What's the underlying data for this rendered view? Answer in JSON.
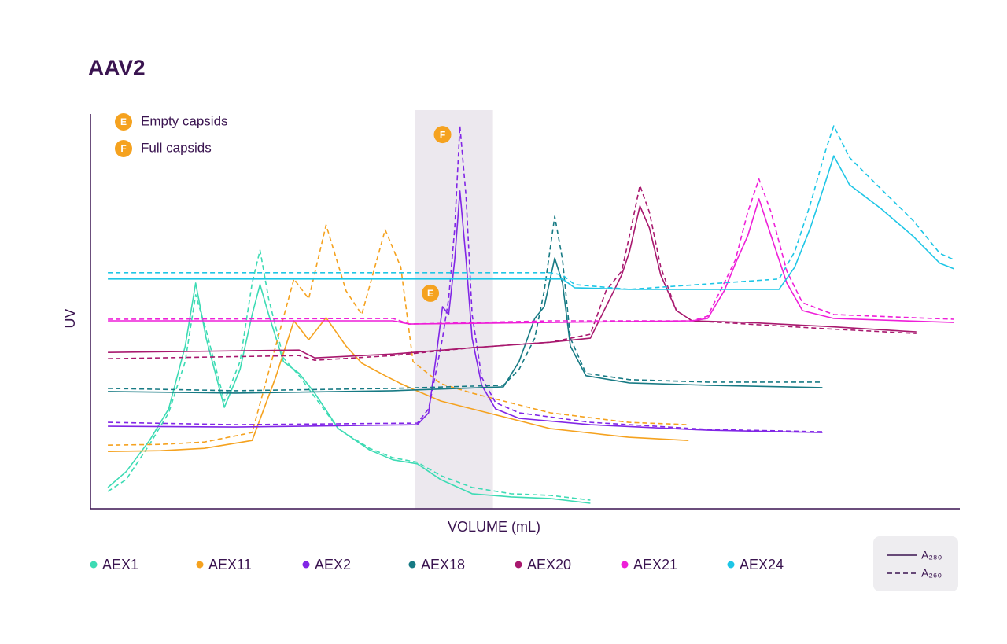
{
  "chart_data": {
    "type": "line",
    "title": "AAV2",
    "x_label": "VOLUME (mL)",
    "y_label": "UV",
    "xlim": [
      0,
      100
    ],
    "ylim": [
      0,
      100
    ],
    "shaded_range": [
      37.3,
      46.3
    ],
    "line_styles": [
      {
        "key": "a280",
        "label": "A₂₈₀",
        "dash": "solid"
      },
      {
        "key": "a260",
        "label": "A₂₆₀",
        "dash": "dashed"
      }
    ],
    "markers": [
      {
        "label": "E",
        "text": "Empty capsids"
      },
      {
        "label": "F",
        "text": "Full capsids"
      }
    ],
    "annotations": [
      {
        "label": "E",
        "x": 39.1,
        "y": 54.6
      },
      {
        "label": "F",
        "x": 40.5,
        "y": 94.8
      }
    ],
    "series": [
      {
        "name": "AEX1",
        "color": "#3ddbb4",
        "x": [
          2.0,
          4.1,
          6.8,
          9.0,
          10.9,
          12.1,
          13.3,
          15.4,
          17.2,
          18.6,
          19.5,
          20.5,
          22.2,
          24.0,
          25.8,
          28.5,
          32.1,
          34.8,
          37.6,
          40.3,
          43.9,
          48.4,
          52.9,
          57.5
        ],
        "a280": [
          5.4,
          9.4,
          17.3,
          25.3,
          41.2,
          57.2,
          43.2,
          25.7,
          35.3,
          49.2,
          56.8,
          49.2,
          37.3,
          34.3,
          29.3,
          20.3,
          14.9,
          12.4,
          11.4,
          7.4,
          3.8,
          3.0,
          2.6,
          1.4
        ],
        "a260": [
          4.4,
          7.4,
          16.3,
          24.3,
          37.3,
          54.2,
          45.2,
          27.3,
          37.3,
          57.2,
          65.5,
          53.2,
          38.2,
          33.7,
          28.3,
          20.3,
          15.3,
          12.9,
          11.8,
          8.4,
          5.4,
          3.8,
          3.4,
          2.2
        ]
      },
      {
        "name": "AEX11",
        "color": "#f5a21f",
        "x": [
          2.0,
          8.1,
          13.1,
          18.6,
          21.3,
          23.4,
          25.1,
          27.1,
          29.4,
          31.2,
          33.9,
          35.7,
          37.1,
          40.3,
          43.9,
          52.9,
          61.9,
          68.8
        ],
        "a280": [
          14.5,
          14.7,
          15.3,
          17.3,
          33.3,
          47.6,
          42.8,
          48.4,
          41.2,
          36.9,
          33.7,
          31.7,
          30.3,
          27.3,
          25.3,
          20.3,
          18.1,
          17.3
        ],
        "a260": [
          16.1,
          16.3,
          16.9,
          19.3,
          41.2,
          58.2,
          53.2,
          71.9,
          55.2,
          49.2,
          70.7,
          61.2,
          37.3,
          31.7,
          29.3,
          24.3,
          21.9,
          21.3
        ]
      },
      {
        "name": "AEX2",
        "color": "#8126e6",
        "x": [
          2.0,
          16.7,
          37.6,
          38.9,
          39.8,
          40.5,
          41.2,
          41.9,
          42.5,
          43.2,
          43.9,
          45.0,
          46.6,
          49.3,
          57.5,
          71.0,
          84.2
        ],
        "a280": [
          20.9,
          20.7,
          21.3,
          24.3,
          39.2,
          51.2,
          49.2,
          63.1,
          80.5,
          63.1,
          43.2,
          31.3,
          25.3,
          22.9,
          21.3,
          19.9,
          19.3
        ],
        "a260": [
          21.9,
          21.3,
          21.7,
          25.3,
          35.3,
          43.2,
          53.2,
          71.1,
          97.0,
          79.1,
          49.2,
          33.3,
          26.9,
          24.3,
          21.9,
          20.1,
          19.5
        ]
      },
      {
        "name": "AEX18",
        "color": "#177a84",
        "x": [
          2.0,
          16.7,
          34.8,
          47.5,
          49.3,
          51.1,
          52.2,
          53.4,
          54.3,
          55.2,
          57.0,
          62.0,
          71.0,
          84.2
        ],
        "a280": [
          29.7,
          29.3,
          29.9,
          30.9,
          37.3,
          48.2,
          51.2,
          63.5,
          57.2,
          41.2,
          33.7,
          31.9,
          31.3,
          30.7
        ],
        "a260": [
          30.5,
          29.9,
          30.5,
          31.3,
          35.3,
          43.2,
          55.2,
          74.1,
          63.1,
          43.2,
          34.3,
          32.7,
          32.1,
          32.1
        ]
      },
      {
        "name": "AEX20",
        "color": "#a8186e",
        "x": [
          2.0,
          24.0,
          25.8,
          34.8,
          43.9,
          52.9,
          57.5,
          59.3,
          61.1,
          62.0,
          63.2,
          64.3,
          65.6,
          67.4,
          69.2,
          75.6,
          84.6,
          95.0
        ],
        "a280": [
          39.6,
          40.2,
          38.2,
          39.2,
          40.8,
          42.2,
          43.2,
          51.2,
          59.2,
          65.1,
          76.7,
          71.1,
          59.2,
          50.2,
          47.6,
          47.2,
          46.2,
          44.8
        ],
        "a260": [
          38.0,
          38.8,
          37.6,
          38.8,
          40.8,
          42.2,
          44.2,
          55.2,
          60.2,
          69.1,
          81.9,
          75.1,
          61.2,
          50.2,
          47.6,
          46.8,
          45.6,
          44.4
        ]
      },
      {
        "name": "AEX21",
        "color": "#ee1fd8",
        "x": [
          2.0,
          34.8,
          36.7,
          52.9,
          69.2,
          71.0,
          72.9,
          74.2,
          75.6,
          76.9,
          78.3,
          80.1,
          81.9,
          85.5,
          99.3
        ],
        "a280": [
          47.6,
          47.6,
          46.8,
          47.2,
          47.6,
          48.2,
          55.2,
          62.2,
          69.1,
          78.5,
          69.1,
          57.2,
          50.2,
          48.2,
          47.2
        ],
        "a260": [
          48.0,
          48.2,
          46.8,
          47.6,
          47.6,
          48.8,
          57.2,
          63.1,
          75.1,
          83.5,
          75.1,
          60.2,
          52.2,
          49.2,
          48.0
        ]
      },
      {
        "name": "AEX24",
        "color": "#1ec6e6",
        "x": [
          2.0,
          52.9,
          54.3,
          55.7,
          62.0,
          79.2,
          81.0,
          82.8,
          84.6,
          85.5,
          87.3,
          90.9,
          94.6,
          97.7,
          99.3
        ],
        "a280": [
          58.2,
          58.2,
          58.2,
          56.0,
          55.6,
          55.6,
          61.2,
          71.1,
          83.1,
          89.4,
          82.1,
          76.1,
          69.1,
          62.2,
          60.8
        ],
        "a260": [
          59.8,
          59.8,
          59.2,
          56.8,
          55.6,
          58.2,
          65.1,
          77.1,
          91.0,
          97.0,
          89.0,
          81.1,
          73.1,
          64.7,
          63.1
        ]
      }
    ]
  }
}
